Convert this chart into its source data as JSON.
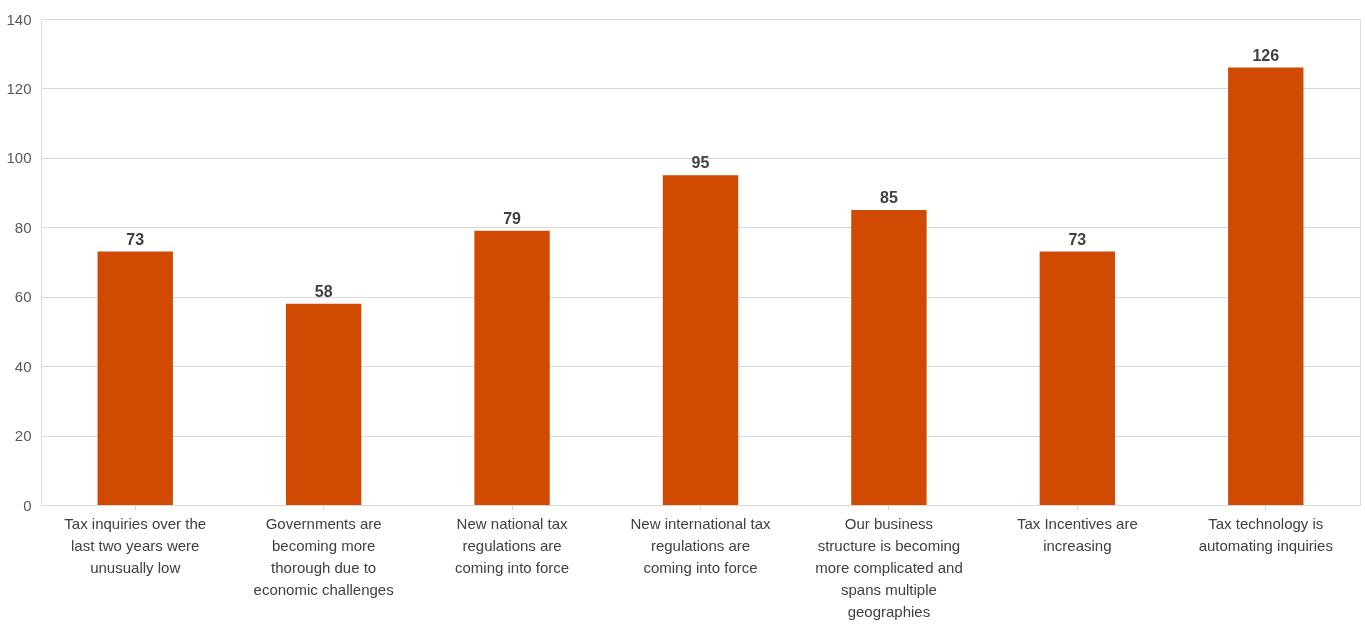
{
  "chart_data": {
    "type": "bar",
    "categories": [
      "Tax inquiries over the\nlast two years were\nunusually low",
      "Governments are\nbecoming more\nthorough due to\neconomic challenges",
      "New national tax\nregulations are\ncoming into force",
      "New international tax\nregulations are\ncoming into force",
      "Our business\nstructure is becoming\nmore complicated and\nspans multiple\ngeographies",
      "Tax Incentives are\nincreasing",
      "Tax technology  is\nautomating inquiries"
    ],
    "values": [
      73,
      58,
      79,
      95,
      85,
      73,
      126
    ],
    "color": "#d04a02",
    "ylim": [
      0,
      140
    ],
    "yticks": [
      0,
      20,
      40,
      60,
      80,
      100,
      120,
      140
    ],
    "grid": "y",
    "data_labels": true
  }
}
